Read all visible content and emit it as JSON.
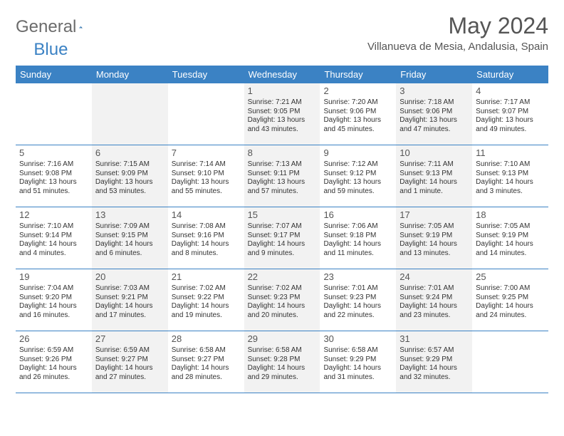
{
  "logo": {
    "text1": "General",
    "text2": "Blue"
  },
  "title": "May 2024",
  "location": "Villanueva de Mesia, Andalusia, Spain",
  "colors": {
    "header_bg": "#3b82c4",
    "alt_bg": "#f2f2f2",
    "text_gray": "#555555",
    "text_dark": "#333333"
  },
  "weekdays": [
    "Sunday",
    "Monday",
    "Tuesday",
    "Wednesday",
    "Thursday",
    "Friday",
    "Saturday"
  ],
  "weeks": [
    [
      {
        "n": "",
        "sr": "",
        "ss": "",
        "dl": ""
      },
      {
        "n": "",
        "sr": "",
        "ss": "",
        "dl": ""
      },
      {
        "n": "",
        "sr": "",
        "ss": "",
        "dl": ""
      },
      {
        "n": "1",
        "sr": "7:21 AM",
        "ss": "9:05 PM",
        "dl": "13 hours and 43 minutes."
      },
      {
        "n": "2",
        "sr": "7:20 AM",
        "ss": "9:06 PM",
        "dl": "13 hours and 45 minutes."
      },
      {
        "n": "3",
        "sr": "7:18 AM",
        "ss": "9:06 PM",
        "dl": "13 hours and 47 minutes."
      },
      {
        "n": "4",
        "sr": "7:17 AM",
        "ss": "9:07 PM",
        "dl": "13 hours and 49 minutes."
      }
    ],
    [
      {
        "n": "5",
        "sr": "7:16 AM",
        "ss": "9:08 PM",
        "dl": "13 hours and 51 minutes."
      },
      {
        "n": "6",
        "sr": "7:15 AM",
        "ss": "9:09 PM",
        "dl": "13 hours and 53 minutes."
      },
      {
        "n": "7",
        "sr": "7:14 AM",
        "ss": "9:10 PM",
        "dl": "13 hours and 55 minutes."
      },
      {
        "n": "8",
        "sr": "7:13 AM",
        "ss": "9:11 PM",
        "dl": "13 hours and 57 minutes."
      },
      {
        "n": "9",
        "sr": "7:12 AM",
        "ss": "9:12 PM",
        "dl": "13 hours and 59 minutes."
      },
      {
        "n": "10",
        "sr": "7:11 AM",
        "ss": "9:13 PM",
        "dl": "14 hours and 1 minute."
      },
      {
        "n": "11",
        "sr": "7:10 AM",
        "ss": "9:13 PM",
        "dl": "14 hours and 3 minutes."
      }
    ],
    [
      {
        "n": "12",
        "sr": "7:10 AM",
        "ss": "9:14 PM",
        "dl": "14 hours and 4 minutes."
      },
      {
        "n": "13",
        "sr": "7:09 AM",
        "ss": "9:15 PM",
        "dl": "14 hours and 6 minutes."
      },
      {
        "n": "14",
        "sr": "7:08 AM",
        "ss": "9:16 PM",
        "dl": "14 hours and 8 minutes."
      },
      {
        "n": "15",
        "sr": "7:07 AM",
        "ss": "9:17 PM",
        "dl": "14 hours and 9 minutes."
      },
      {
        "n": "16",
        "sr": "7:06 AM",
        "ss": "9:18 PM",
        "dl": "14 hours and 11 minutes."
      },
      {
        "n": "17",
        "sr": "7:05 AM",
        "ss": "9:19 PM",
        "dl": "14 hours and 13 minutes."
      },
      {
        "n": "18",
        "sr": "7:05 AM",
        "ss": "9:19 PM",
        "dl": "14 hours and 14 minutes."
      }
    ],
    [
      {
        "n": "19",
        "sr": "7:04 AM",
        "ss": "9:20 PM",
        "dl": "14 hours and 16 minutes."
      },
      {
        "n": "20",
        "sr": "7:03 AM",
        "ss": "9:21 PM",
        "dl": "14 hours and 17 minutes."
      },
      {
        "n": "21",
        "sr": "7:02 AM",
        "ss": "9:22 PM",
        "dl": "14 hours and 19 minutes."
      },
      {
        "n": "22",
        "sr": "7:02 AM",
        "ss": "9:23 PM",
        "dl": "14 hours and 20 minutes."
      },
      {
        "n": "23",
        "sr": "7:01 AM",
        "ss": "9:23 PM",
        "dl": "14 hours and 22 minutes."
      },
      {
        "n": "24",
        "sr": "7:01 AM",
        "ss": "9:24 PM",
        "dl": "14 hours and 23 minutes."
      },
      {
        "n": "25",
        "sr": "7:00 AM",
        "ss": "9:25 PM",
        "dl": "14 hours and 24 minutes."
      }
    ],
    [
      {
        "n": "26",
        "sr": "6:59 AM",
        "ss": "9:26 PM",
        "dl": "14 hours and 26 minutes."
      },
      {
        "n": "27",
        "sr": "6:59 AM",
        "ss": "9:27 PM",
        "dl": "14 hours and 27 minutes."
      },
      {
        "n": "28",
        "sr": "6:58 AM",
        "ss": "9:27 PM",
        "dl": "14 hours and 28 minutes."
      },
      {
        "n": "29",
        "sr": "6:58 AM",
        "ss": "9:28 PM",
        "dl": "14 hours and 29 minutes."
      },
      {
        "n": "30",
        "sr": "6:58 AM",
        "ss": "9:29 PM",
        "dl": "14 hours and 31 minutes."
      },
      {
        "n": "31",
        "sr": "6:57 AM",
        "ss": "9:29 PM",
        "dl": "14 hours and 32 minutes."
      },
      {
        "n": "",
        "sr": "",
        "ss": "",
        "dl": ""
      }
    ]
  ],
  "labels": {
    "sunrise": "Sunrise: ",
    "sunset": "Sunset: ",
    "daylight": "Daylight: "
  }
}
